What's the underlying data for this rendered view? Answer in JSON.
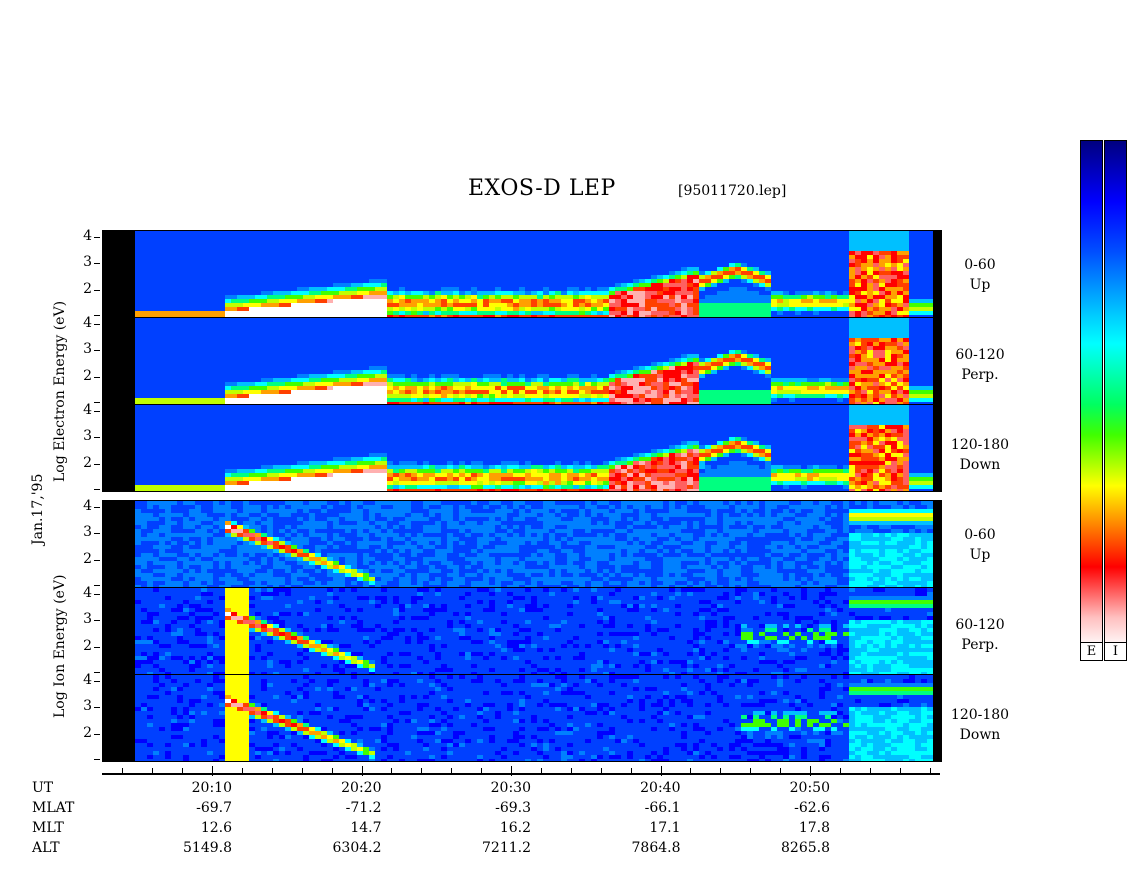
{
  "title": "EXOS-D LEP",
  "file": "[95011720.lep]",
  "date": "Jan.17,'95",
  "electron_axis_label": "Log  Electron  Energy (eV)",
  "ion_axis_label": "Log   Ion  Energy (eV)",
  "channels": [
    {
      "range": "0-60",
      "dir": "Up"
    },
    {
      "range": "60-120",
      "dir": "Perp."
    },
    {
      "range": "120-180",
      "dir": "Down"
    }
  ],
  "yticks": [
    "4",
    "3",
    "2"
  ],
  "colorbars": [
    "E",
    "I"
  ],
  "table": {
    "rows": [
      "UT",
      "MLAT",
      "MLT",
      "ALT"
    ],
    "columns": [
      {
        "UT": "20:10",
        "MLAT": "-69.7",
        "MLT": "12.6",
        "ALT": "5149.8"
      },
      {
        "UT": "20:20",
        "MLAT": "-71.2",
        "MLT": "14.7",
        "ALT": "6304.2"
      },
      {
        "UT": "20:30",
        "MLAT": "-69.3",
        "MLT": "16.2",
        "ALT": "7211.2"
      },
      {
        "UT": "20:40",
        "MLAT": "-66.1",
        "MLT": "17.1",
        "ALT": "7864.8"
      },
      {
        "UT": "20:50",
        "MLAT": "-62.6",
        "MLT": "17.8",
        "ALT": "8265.8"
      }
    ]
  },
  "chart_data": {
    "type": "heatmap",
    "title": "EXOS-D LEP",
    "xlabel": "UT",
    "ylabel": "Log Energy (eV)",
    "x_ticks": [
      "20:10",
      "20:20",
      "20:30",
      "20:40",
      "20:50"
    ],
    "y_ticks": [
      2,
      3,
      4
    ],
    "species": [
      "Electron",
      "Ion"
    ],
    "pitch_angle_bins": [
      "0-60",
      "60-120",
      "120-180"
    ]
  }
}
